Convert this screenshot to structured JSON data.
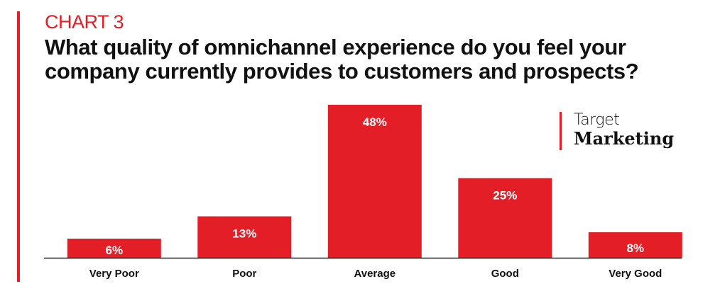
{
  "header": {
    "chart_label": "CHART 3",
    "title": "What quality of omnichannel experience do you feel your company currently provides to customers and prospects?"
  },
  "brand": {
    "line1": "Target",
    "line2": "Marketing"
  },
  "colors": {
    "accent": "#e41e26",
    "bar": "#e41e26",
    "bar_label": "#ffffff",
    "text": "#111111"
  },
  "chart_data": {
    "type": "bar",
    "title": "What quality of omnichannel experience do you feel your company currently provides to customers and prospects?",
    "categories": [
      "Very Poor",
      "Poor",
      "Average",
      "Good",
      "Very Good"
    ],
    "values": [
      6,
      13,
      48,
      25,
      8
    ],
    "value_labels": [
      "6%",
      "13%",
      "48%",
      "25%",
      "8%"
    ],
    "xlabel": "",
    "ylabel": "",
    "ylim": [
      0,
      48
    ],
    "unit": "%",
    "grid": false,
    "legend": "none"
  }
}
